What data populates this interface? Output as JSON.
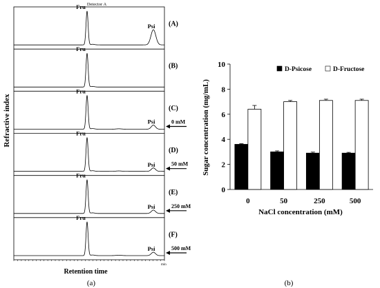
{
  "chart_data": [
    {
      "type": "line",
      "panel_label": "(a)",
      "header_text": "Detector A",
      "ylabel": "Refractive index",
      "xlabel": "Retention time",
      "x_unit_label": "min",
      "traces": [
        {
          "label": "(A)",
          "peaks": [
            {
              "name": "Fru",
              "relative_height": 1.0
            },
            {
              "name": "Psi",
              "relative_height": 0.45
            }
          ]
        },
        {
          "label": "(B)",
          "peaks": [
            {
              "name": "Fru",
              "relative_height": 1.0
            }
          ]
        },
        {
          "label": "(C)",
          "arrow_label": "0 mM",
          "peaks": [
            {
              "name": "Fru",
              "relative_height": 1.0
            },
            {
              "name": "Psi",
              "relative_height": 0.12
            }
          ]
        },
        {
          "label": "(D)",
          "arrow_label": "50 mM",
          "peaks": [
            {
              "name": "Fru",
              "relative_height": 1.0
            },
            {
              "name": "Psi",
              "relative_height": 0.1
            }
          ]
        },
        {
          "label": "(E)",
          "arrow_label": "250 mM",
          "peaks": [
            {
              "name": "Fru",
              "relative_height": 1.0
            },
            {
              "name": "Psi",
              "relative_height": 0.1
            }
          ]
        },
        {
          "label": "(F)",
          "arrow_label": "500 mM",
          "peaks": [
            {
              "name": "Fru",
              "relative_height": 1.0
            },
            {
              "name": "Psi",
              "relative_height": 0.1
            }
          ]
        }
      ]
    },
    {
      "type": "bar",
      "panel_label": "(b)",
      "xlabel": "NaCl concentration  (mM)",
      "ylabel": "Sugar concentration  (mg/mL)",
      "categories": [
        "0",
        "50",
        "250",
        "500"
      ],
      "ylim": [
        0,
        10
      ],
      "yticks": [
        0,
        2,
        4,
        6,
        8,
        10
      ],
      "legend_position": "top",
      "series": [
        {
          "name": "D-Psicose",
          "color": "#000000",
          "values": [
            3.6,
            3.0,
            2.9,
            2.9
          ],
          "errors": [
            0.05,
            0.08,
            0.08,
            0.06
          ]
        },
        {
          "name": "D-Fructose",
          "color": "#ffffff",
          "values": [
            6.4,
            7.0,
            7.1,
            7.1
          ],
          "errors": [
            0.3,
            0.1,
            0.1,
            0.1
          ]
        }
      ]
    }
  ]
}
